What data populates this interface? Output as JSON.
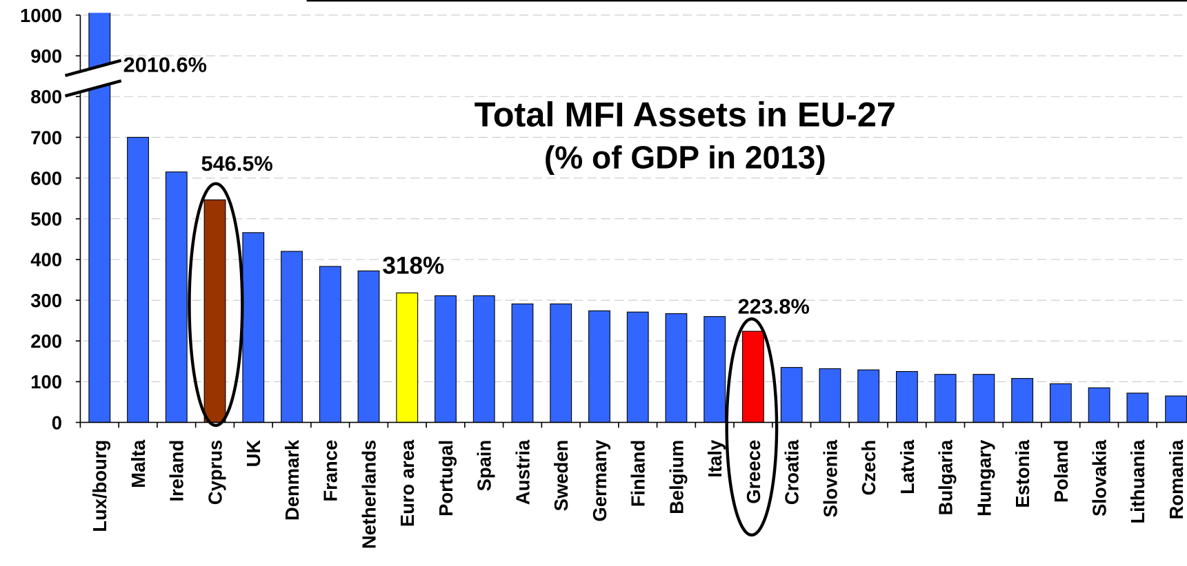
{
  "chart_data": {
    "type": "bar",
    "title": "Total MFI Assets in EU-27",
    "subtitle": "(% of GDP in 2013)",
    "categories": [
      "Lux/bourg",
      "Malta",
      "Ireland",
      "Cyprus",
      "UK",
      "Denmark",
      "France",
      "Netherlands",
      "Euro area",
      "Portugal",
      "Spain",
      "Austria",
      "Sweden",
      "Germany",
      "Finland",
      "Belgium",
      "Italy",
      "Greece",
      "Croatia",
      "Slovenia",
      "Czech",
      "Latvia",
      "Bulgaria",
      "Hungary",
      "Estonia",
      "Poland",
      "Slovakia",
      "Lithuania",
      "Romania"
    ],
    "values": [
      2010.6,
      700,
      615,
      546.5,
      466,
      420,
      383,
      372,
      318,
      311,
      311,
      291,
      291,
      274,
      271,
      267,
      260,
      223.8,
      135,
      132,
      129,
      125,
      118,
      118,
      108,
      95,
      85,
      72,
      65
    ],
    "value_labels": [
      "2010.6%",
      null,
      null,
      "546.5%",
      null,
      null,
      null,
      null,
      "318%",
      null,
      null,
      null,
      null,
      null,
      null,
      null,
      null,
      "223.8%",
      null,
      null,
      null,
      null,
      null,
      null,
      null,
      null,
      null,
      null,
      null
    ],
    "colors": [
      "#3366ff",
      "#3366ff",
      "#3366ff",
      "#993300",
      "#3366ff",
      "#3366ff",
      "#3366ff",
      "#3366ff",
      "#ffff00",
      "#3366ff",
      "#3366ff",
      "#3366ff",
      "#3366ff",
      "#3366ff",
      "#3366ff",
      "#3366ff",
      "#3366ff",
      "#ff0000",
      "#3366ff",
      "#3366ff",
      "#3366ff",
      "#3366ff",
      "#3366ff",
      "#3366ff",
      "#3366ff",
      "#3366ff",
      "#3366ff",
      "#3366ff",
      "#3366ff"
    ],
    "ylim": [
      0,
      1000
    ],
    "yticks": [
      0,
      100,
      200,
      300,
      400,
      500,
      600,
      700,
      800,
      900,
      1000
    ],
    "grid": true
  }
}
